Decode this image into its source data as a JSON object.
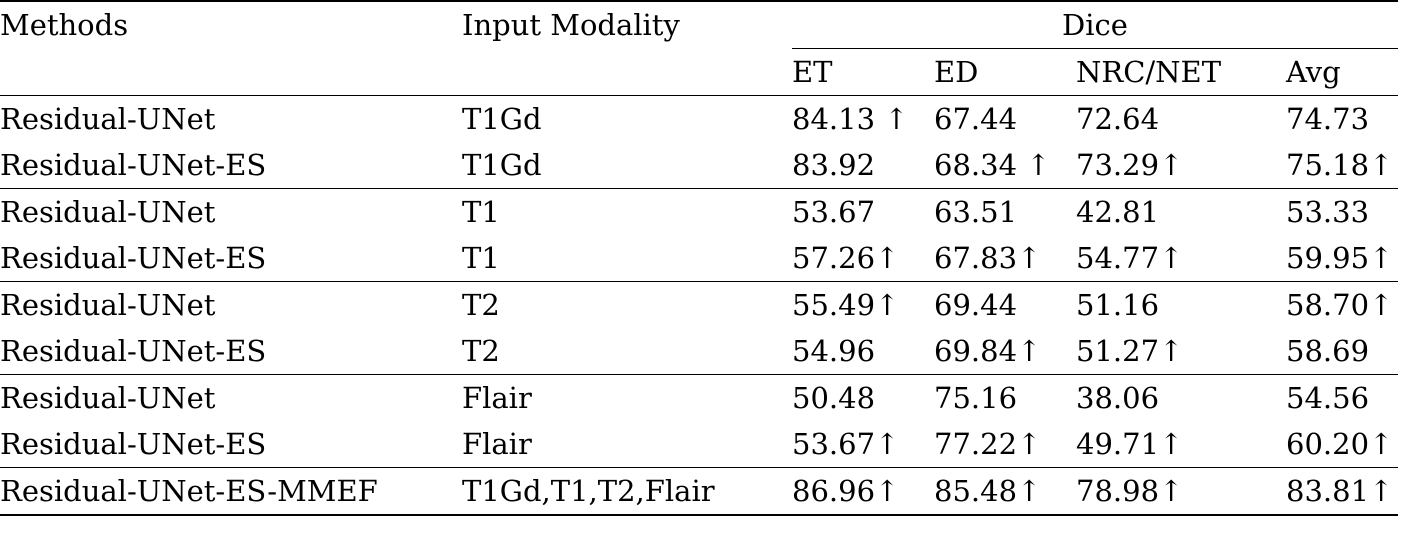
{
  "header": {
    "methods": "Methods",
    "input_modality": "Input Modality",
    "dice": "Dice",
    "sub": [
      "ET",
      "ED",
      "NRC/NET",
      "Avg"
    ]
  },
  "rows": [
    {
      "method": "Residual-UNet",
      "modality": "T1Gd",
      "et": "84.13 ↑",
      "ed": "67.44",
      "nrc": "72.64",
      "avg": "74.73"
    },
    {
      "method": "Residual-UNet-ES",
      "modality": "T1Gd",
      "et": "83.92",
      "ed": "68.34 ↑",
      "nrc": "73.29↑",
      "avg": "75.18↑"
    },
    {
      "method": "Residual-UNet",
      "modality": "T1",
      "et": "53.67",
      "ed": "63.51",
      "nrc": "42.81",
      "avg": "53.33"
    },
    {
      "method": "Residual-UNet-ES",
      "modality": "T1",
      "et": "57.26↑",
      "ed": "67.83↑",
      "nrc": "54.77↑",
      "avg": "59.95↑"
    },
    {
      "method": "Residual-UNet",
      "modality": "T2",
      "et": "55.49↑",
      "ed": "69.44",
      "nrc": "51.16",
      "avg": "58.70↑"
    },
    {
      "method": "Residual-UNet-ES",
      "modality": "T2",
      "et": "54.96",
      "ed": "69.84↑",
      "nrc": "51.27↑",
      "avg": "58.69"
    },
    {
      "method": "Residual-UNet",
      "modality": "Flair",
      "et": "50.48",
      "ed": "75.16",
      "nrc": "38.06",
      "avg": "54.56"
    },
    {
      "method": "Residual-UNet-ES",
      "modality": "Flair",
      "et": "53.67↑",
      "ed": "77.22↑",
      "nrc": "49.71↑",
      "avg": "60.20↑"
    },
    {
      "method": "Residual-UNet-ES-MMEF",
      "modality": "T1Gd,T1,T2,Flair",
      "et": "86.96↑",
      "ed": "85.48↑",
      "nrc": "78.98↑",
      "avg": "83.81↑"
    }
  ]
}
